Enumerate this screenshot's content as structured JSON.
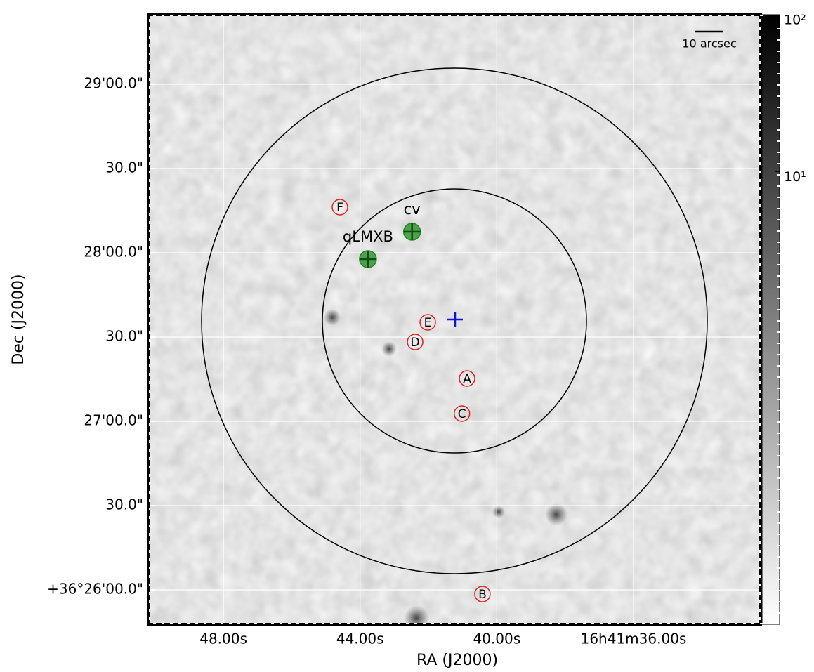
{
  "chart_data": {
    "type": "image",
    "x_label": "RA (J2000)",
    "y_label": "Dec (J2000)",
    "xlim": [
      50.18,
      32.28
    ],
    "xticks": [
      {
        "value": 48,
        "label": "48.00s"
      },
      {
        "value": 44,
        "label": "44.00s"
      },
      {
        "value": 40,
        "label": "40.00s"
      },
      {
        "value": 36,
        "label": "16h41m36.00s"
      }
    ],
    "ylim": [
      -12.25,
      204.75
    ],
    "yticks": [
      {
        "value": 0,
        "label": "+36°26'00.0\""
      },
      {
        "value": 30,
        "label": "30.0\""
      },
      {
        "value": 60,
        "label": "27'00.0\""
      },
      {
        "value": 90,
        "label": "30.0\""
      },
      {
        "value": 120,
        "label": "28'00.0\""
      },
      {
        "value": 150,
        "label": "30.0\""
      },
      {
        "value": 180,
        "label": "29'00.0\""
      }
    ],
    "grid": true,
    "colorbar": {
      "scale": "log",
      "lim": [
        0.013,
        100
      ],
      "ticks": [
        {
          "value": 100,
          "label": "10²"
        },
        {
          "value": 10,
          "label": "10¹"
        }
      ]
    },
    "scalebar": {
      "label": "10 arcsec",
      "length": 10
    },
    "regions": [
      {
        "ra": 41.24,
        "dec": 95.75,
        "radius": 47,
        "color": "#000000"
      },
      {
        "ra": 41.24,
        "dec": 95.75,
        "radius": 90,
        "color": "#000000"
      }
    ],
    "center": {
      "ra": 41.22,
      "dec": 96.25,
      "color": "#1010e0"
    },
    "sources": [
      {
        "label": "F",
        "ra": 44.59,
        "dec": 136.25,
        "color": "#e02020",
        "style": "circled"
      },
      {
        "label": "E",
        "ra": 42.02,
        "dec": 95.25,
        "color": "#e02020",
        "style": "circled"
      },
      {
        "label": "D",
        "ra": 42.39,
        "dec": 88.25,
        "color": "#e02020",
        "style": "circled"
      },
      {
        "label": "A",
        "ra": 40.87,
        "dec": 75.25,
        "color": "#e02020",
        "style": "circled"
      },
      {
        "label": "C",
        "ra": 41.02,
        "dec": 62.75,
        "color": "#e02020",
        "style": "circled"
      },
      {
        "label": "B",
        "ra": 40.42,
        "dec": -1.5,
        "color": "#e02020",
        "style": "circled"
      },
      {
        "label": "cv",
        "ra": 42.48,
        "dec": 127.5,
        "color": "#1f8a1f",
        "style": "cross"
      },
      {
        "label": "qLMXB",
        "ra": 43.77,
        "dec": 117.75,
        "color": "#1f8a1f",
        "style": "cross"
      }
    ]
  }
}
